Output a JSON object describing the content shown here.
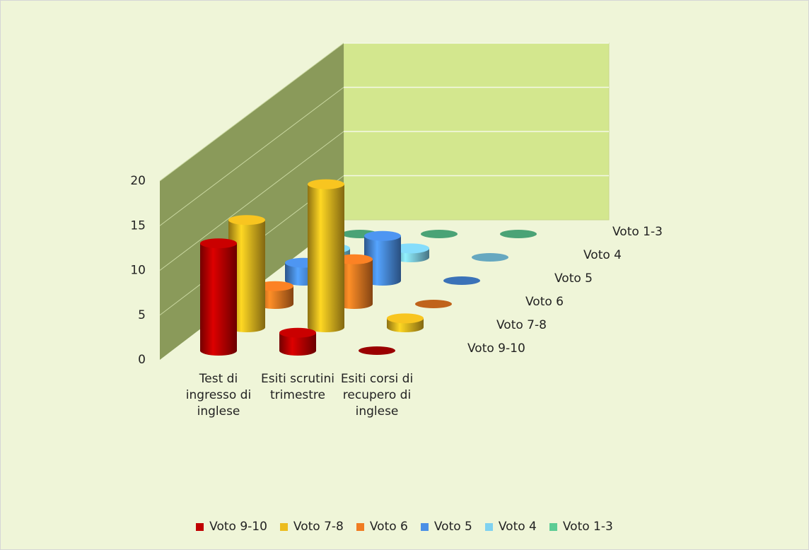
{
  "chart_data": {
    "type": "bar3d",
    "categories": [
      "Test di ingresso di inglese",
      "Esiti scrutini trimestre",
      "Esiti corsi di recupero di inglese"
    ],
    "series": [
      {
        "name": "Voto 9-10",
        "color": "#c00000",
        "values": [
          12,
          2,
          0
        ]
      },
      {
        "name": "Voto 7-8",
        "color": "#ecbc1e",
        "values": [
          12,
          16,
          1
        ]
      },
      {
        "name": "Voto 6",
        "color": "#f07c22",
        "values": [
          2,
          5,
          0
        ]
      },
      {
        "name": "Voto 5",
        "color": "#4a8fe6",
        "values": [
          2,
          5,
          0
        ]
      },
      {
        "name": "Voto 4",
        "color": "#7fd2f0",
        "values": [
          1,
          1,
          0
        ]
      },
      {
        "name": "Voto 1-3",
        "color": "#5ccc94",
        "values": [
          0,
          0,
          0
        ]
      }
    ],
    "ylim": [
      0,
      20
    ],
    "yticks": [
      0,
      5,
      10,
      15,
      20
    ],
    "grid": true
  }
}
